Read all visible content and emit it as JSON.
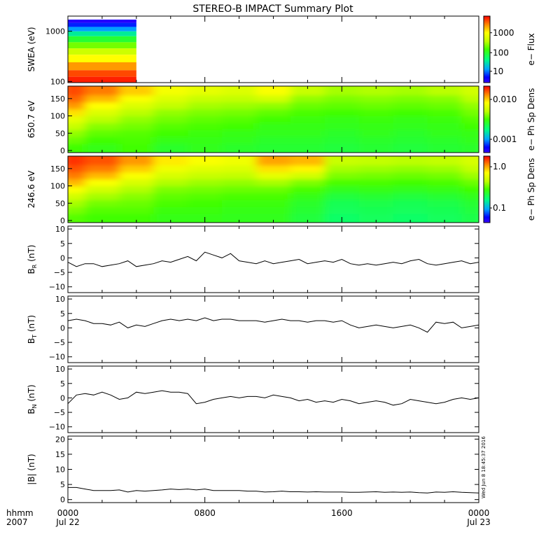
{
  "title": "STEREO-B IMPACT Summary Plot",
  "timestamp": "Wed Jun 8 18:45:37 2016",
  "time_axis": {
    "row1_label": "hhmm",
    "row2_label": "2007",
    "ticks": [
      {
        "time": "0000",
        "date": "Jul 22"
      },
      {
        "time": "0800",
        "date": ""
      },
      {
        "time": "1600",
        "date": ""
      },
      {
        "time": "0000",
        "date": "Jul 23"
      }
    ]
  },
  "colors": {
    "line": "#000000",
    "spectrogram_scale": [
      "#3c00ff",
      "#0000ff",
      "#00a0ff",
      "#00ff80",
      "#40ff00",
      "#c0ff00",
      "#ffff00",
      "#ff8000",
      "#ff0000"
    ]
  },
  "chart_data": [
    {
      "type": "heatmap",
      "name": "swea",
      "ylabel": "SWEA (eV)",
      "yscale": "log",
      "yticks": [
        "100",
        "1000"
      ],
      "colorbar_label": "e− Flux",
      "colorbar_ticks": [
        "10",
        "100",
        "1000"
      ],
      "data_coverage_hours": [
        0,
        4
      ],
      "rows": [
        {
          "energy_ev": 1600,
          "level": 0.05
        },
        {
          "energy_ev": 1350,
          "level": 0.15
        },
        {
          "energy_ev": 1100,
          "level": 0.25
        },
        {
          "energy_ev": 900,
          "level": 0.35
        },
        {
          "energy_ev": 700,
          "level": 0.45
        },
        {
          "energy_ev": 520,
          "level": 0.55
        },
        {
          "energy_ev": 400,
          "level": 0.65
        },
        {
          "energy_ev": 290,
          "level": 0.75
        },
        {
          "energy_ev": 200,
          "level": 0.85
        },
        {
          "energy_ev": 140,
          "level": 0.93
        },
        {
          "energy_ev": 110,
          "level": 0.97
        }
      ]
    },
    {
      "type": "heatmap",
      "name": "pad650",
      "ylabel": "650.7 eV",
      "ylim": [
        0,
        180
      ],
      "yticks": [
        "0",
        "50",
        "100",
        "150"
      ],
      "colorbar_label": "e− Ph Sp Dens",
      "colorbar_ticks": [
        "0.001",
        "0.010"
      ],
      "x_hours": [
        0,
        2,
        4,
        6,
        8,
        10,
        12,
        14,
        16,
        18,
        20,
        22,
        24
      ],
      "pitch_angles": [
        10,
        30,
        50,
        70,
        90,
        110,
        130,
        150,
        170
      ],
      "levels": [
        [
          0.5,
          0.48,
          0.5,
          0.46,
          0.47,
          0.46,
          0.45,
          0.45,
          0.44,
          0.45,
          0.44,
          0.45,
          0.46
        ],
        [
          0.54,
          0.5,
          0.51,
          0.48,
          0.48,
          0.47,
          0.46,
          0.46,
          0.45,
          0.46,
          0.45,
          0.46,
          0.47
        ],
        [
          0.58,
          0.53,
          0.52,
          0.5,
          0.49,
          0.48,
          0.47,
          0.47,
          0.46,
          0.47,
          0.46,
          0.47,
          0.48
        ],
        [
          0.64,
          0.57,
          0.55,
          0.52,
          0.51,
          0.5,
          0.48,
          0.48,
          0.47,
          0.48,
          0.47,
          0.48,
          0.5
        ],
        [
          0.7,
          0.62,
          0.58,
          0.55,
          0.53,
          0.52,
          0.5,
          0.49,
          0.48,
          0.49,
          0.48,
          0.49,
          0.52
        ],
        [
          0.78,
          0.68,
          0.62,
          0.58,
          0.56,
          0.55,
          0.53,
          0.51,
          0.5,
          0.51,
          0.5,
          0.51,
          0.55
        ],
        [
          0.85,
          0.75,
          0.68,
          0.63,
          0.6,
          0.59,
          0.58,
          0.54,
          0.53,
          0.54,
          0.53,
          0.54,
          0.58
        ],
        [
          0.9,
          0.82,
          0.74,
          0.68,
          0.64,
          0.63,
          0.66,
          0.58,
          0.56,
          0.57,
          0.56,
          0.57,
          0.62
        ],
        [
          0.93,
          0.88,
          0.8,
          0.73,
          0.7,
          0.68,
          0.74,
          0.64,
          0.6,
          0.61,
          0.6,
          0.62,
          0.66
        ]
      ]
    },
    {
      "type": "heatmap",
      "name": "pad246",
      "ylabel": "246.6 eV",
      "ylim": [
        0,
        180
      ],
      "yticks": [
        "0",
        "50",
        "100",
        "150"
      ],
      "colorbar_label": "e− Ph Sp Dens",
      "colorbar_ticks": [
        "0.1",
        "1.0"
      ],
      "x_hours": [
        0,
        2,
        4,
        6,
        8,
        10,
        12,
        14,
        16,
        18,
        20,
        22,
        24
      ],
      "pitch_angles": [
        10,
        30,
        50,
        70,
        90,
        110,
        130,
        150,
        170
      ],
      "levels": [
        [
          0.52,
          0.5,
          0.5,
          0.48,
          0.48,
          0.47,
          0.47,
          0.44,
          0.4,
          0.41,
          0.4,
          0.41,
          0.43
        ],
        [
          0.56,
          0.52,
          0.52,
          0.49,
          0.49,
          0.48,
          0.48,
          0.45,
          0.41,
          0.42,
          0.41,
          0.42,
          0.44
        ],
        [
          0.6,
          0.55,
          0.54,
          0.51,
          0.5,
          0.49,
          0.49,
          0.46,
          0.42,
          0.43,
          0.42,
          0.43,
          0.45
        ],
        [
          0.66,
          0.6,
          0.57,
          0.53,
          0.52,
          0.51,
          0.51,
          0.48,
          0.44,
          0.45,
          0.44,
          0.45,
          0.47
        ],
        [
          0.74,
          0.66,
          0.61,
          0.56,
          0.55,
          0.54,
          0.54,
          0.51,
          0.47,
          0.48,
          0.47,
          0.48,
          0.5
        ],
        [
          0.82,
          0.74,
          0.67,
          0.61,
          0.59,
          0.58,
          0.6,
          0.56,
          0.51,
          0.51,
          0.5,
          0.51,
          0.54
        ],
        [
          0.88,
          0.82,
          0.74,
          0.67,
          0.64,
          0.63,
          0.7,
          0.66,
          0.56,
          0.55,
          0.54,
          0.55,
          0.59
        ],
        [
          0.92,
          0.88,
          0.8,
          0.72,
          0.69,
          0.68,
          0.78,
          0.76,
          0.6,
          0.59,
          0.58,
          0.59,
          0.63
        ],
        [
          0.95,
          0.92,
          0.85,
          0.77,
          0.74,
          0.72,
          0.84,
          0.82,
          0.64,
          0.63,
          0.62,
          0.63,
          0.67
        ]
      ]
    },
    {
      "type": "line",
      "name": "br",
      "ylabel": "B_R (nT)",
      "ylabel_main": "B",
      "ylabel_sub": "R",
      "ylabel_unit": " (nT)",
      "ylim": [
        -12,
        11
      ],
      "yticks": [
        "−10",
        "−5",
        "0",
        "5",
        "10"
      ],
      "x": [
        0,
        0.5,
        1,
        1.5,
        2,
        2.5,
        3,
        3.5,
        4,
        4.5,
        5,
        5.5,
        6,
        6.5,
        7,
        7.5,
        8,
        8.5,
        9,
        9.5,
        10,
        10.5,
        11,
        11.5,
        12,
        12.5,
        13,
        13.5,
        14,
        14.5,
        15,
        15.5,
        16,
        16.5,
        17,
        17.5,
        18,
        18.5,
        19,
        19.5,
        20,
        20.5,
        21,
        21.5,
        22,
        22.5,
        23,
        23.5,
        24
      ],
      "y": [
        -1.5,
        -3,
        -2,
        -2,
        -3,
        -2.5,
        -2,
        -1,
        -3,
        -2.5,
        -2,
        -1,
        -1.5,
        -0.5,
        0.5,
        -1,
        2,
        1,
        0,
        1.5,
        -1,
        -1.5,
        -2,
        -1,
        -2,
        -1.5,
        -1,
        -0.5,
        -2,
        -1.5,
        -1,
        -1.5,
        -0.5,
        -2,
        -2.5,
        -2,
        -2.5,
        -2,
        -1.5,
        -2,
        -1,
        -0.5,
        -2,
        -2.5,
        -2,
        -1.5,
        -1,
        -2,
        -1.5
      ]
    },
    {
      "type": "line",
      "name": "bt",
      "ylabel": "B_T (nT)",
      "ylabel_main": "B",
      "ylabel_sub": "T",
      "ylabel_unit": " (nT)",
      "ylim": [
        -12,
        11
      ],
      "yticks": [
        "−10",
        "−5",
        "0",
        "5",
        "10"
      ],
      "x": [
        0,
        0.5,
        1,
        1.5,
        2,
        2.5,
        3,
        3.5,
        4,
        4.5,
        5,
        5.5,
        6,
        6.5,
        7,
        7.5,
        8,
        8.5,
        9,
        9.5,
        10,
        10.5,
        11,
        11.5,
        12,
        12.5,
        13,
        13.5,
        14,
        14.5,
        15,
        15.5,
        16,
        16.5,
        17,
        17.5,
        18,
        18.5,
        19,
        19.5,
        20,
        20.5,
        21,
        21.5,
        22,
        22.5,
        23,
        23.5,
        24
      ],
      "y": [
        2.5,
        3,
        2.5,
        1.5,
        1.5,
        1,
        2,
        0,
        1,
        0.5,
        1.5,
        2.5,
        3,
        2.5,
        3,
        2.5,
        3.5,
        2.5,
        3,
        3,
        2.5,
        2.5,
        2.5,
        2,
        2.5,
        3,
        2.5,
        2.5,
        2,
        2.5,
        2.5,
        2,
        2.5,
        1,
        0,
        0.5,
        1,
        0.5,
        0,
        0.5,
        1,
        0,
        -1.5,
        2,
        1.5,
        2,
        0,
        0.5,
        1
      ]
    },
    {
      "type": "line",
      "name": "bn",
      "ylabel": "B_N (nT)",
      "ylabel_main": "B",
      "ylabel_sub": "N",
      "ylabel_unit": " (nT)",
      "ylim": [
        -12,
        11
      ],
      "yticks": [
        "−10",
        "−5",
        "0",
        "5",
        "10"
      ],
      "x": [
        0,
        0.5,
        1,
        1.5,
        2,
        2.5,
        3,
        3.5,
        4,
        4.5,
        5,
        5.5,
        6,
        6.5,
        7,
        7.5,
        8,
        8.5,
        9,
        9.5,
        10,
        10.5,
        11,
        11.5,
        12,
        12.5,
        13,
        13.5,
        14,
        14.5,
        15,
        15.5,
        16,
        16.5,
        17,
        17.5,
        18,
        18.5,
        19,
        19.5,
        20,
        20.5,
        21,
        21.5,
        22,
        22.5,
        23,
        23.5,
        24
      ],
      "y": [
        -2,
        1,
        1.5,
        1,
        2,
        1,
        -0.5,
        0,
        2,
        1.5,
        2,
        2.5,
        2,
        2,
        1.5,
        -2,
        -1.5,
        -0.5,
        0,
        0.5,
        0,
        0.5,
        0.5,
        0,
        1,
        0.5,
        0,
        -1,
        -0.5,
        -1.5,
        -1,
        -1.5,
        -0.5,
        -1,
        -2,
        -1.5,
        -1,
        -1.5,
        -2.5,
        -2,
        -0.5,
        -1,
        -1.5,
        -2,
        -1.5,
        -0.5,
        0,
        -0.5,
        0
      ]
    },
    {
      "type": "line",
      "name": "bmag",
      "ylabel": "|B| (nT)",
      "ylim": [
        -1,
        21
      ],
      "yticks": [
        "0",
        "5",
        "10",
        "15",
        "20"
      ],
      "x": [
        0,
        0.5,
        1,
        1.5,
        2,
        2.5,
        3,
        3.5,
        4,
        4.5,
        5,
        5.5,
        6,
        6.5,
        7,
        7.5,
        8,
        8.5,
        9,
        9.5,
        10,
        10.5,
        11,
        11.5,
        12,
        12.5,
        13,
        13.5,
        14,
        14.5,
        15,
        15.5,
        16,
        16.5,
        17,
        17.5,
        18,
        18.5,
        19,
        19.5,
        20,
        20.5,
        21,
        21.5,
        22,
        22.5,
        23,
        23.5,
        24
      ],
      "y": [
        4,
        4,
        3.5,
        3,
        3,
        3,
        3.2,
        2.5,
        3,
        2.8,
        3,
        3.2,
        3.5,
        3.3,
        3.5,
        3.2,
        3.5,
        3,
        3,
        3,
        3,
        2.8,
        2.8,
        2.5,
        2.6,
        2.8,
        2.6,
        2.6,
        2.5,
        2.6,
        2.5,
        2.5,
        2.5,
        2.4,
        2.4,
        2.5,
        2.6,
        2.4,
        2.5,
        2.4,
        2.5,
        2.3,
        2.2,
        2.5,
        2.4,
        2.6,
        2.4,
        2.3,
        2.2
      ]
    }
  ]
}
